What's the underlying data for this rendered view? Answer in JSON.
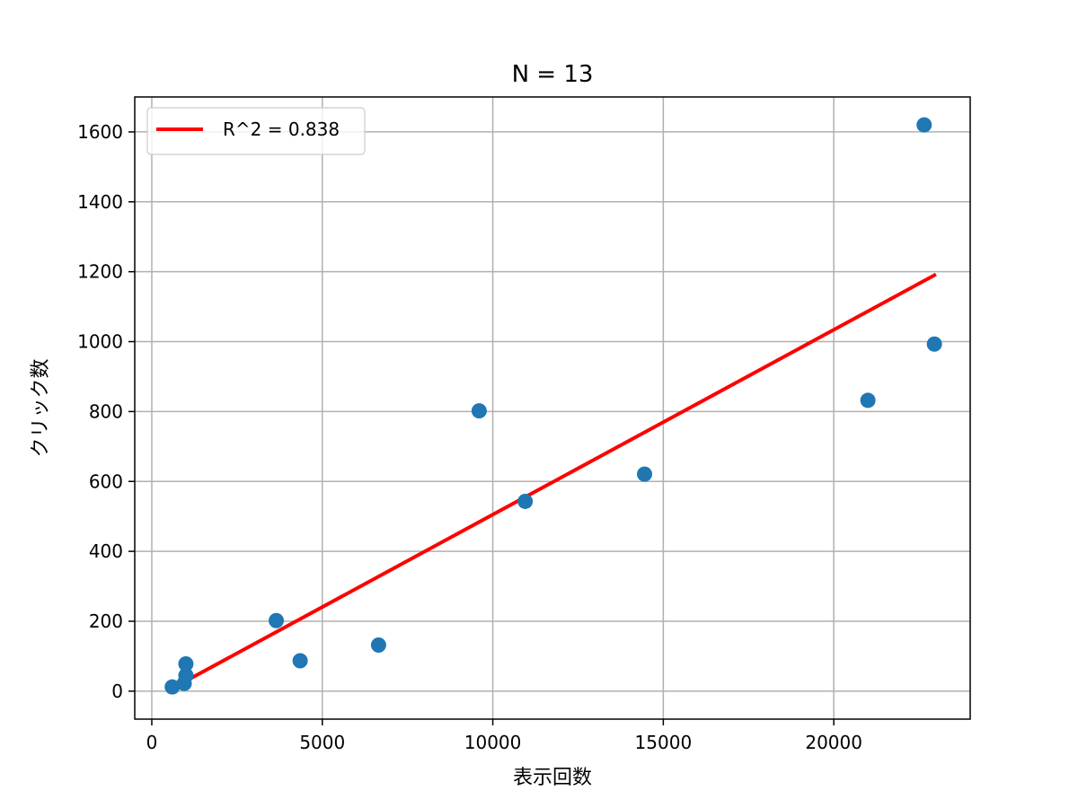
{
  "chart_data": {
    "type": "scatter",
    "title": "N = 13",
    "xlabel": "表示回数",
    "ylabel": "クリック数",
    "xlim": [
      -500,
      24000
    ],
    "ylim": [
      -80,
      1700
    ],
    "xticks": [
      0,
      5000,
      10000,
      15000,
      20000
    ],
    "yticks": [
      0,
      200,
      400,
      600,
      800,
      1000,
      1200,
      1400,
      1600
    ],
    "grid": true,
    "legend_position": "top-left",
    "series": [
      {
        "kind": "scatter",
        "color": "#1f77b4",
        "points": [
          {
            "x": 600,
            "y": 12
          },
          {
            "x": 950,
            "y": 22
          },
          {
            "x": 1000,
            "y": 45
          },
          {
            "x": 1000,
            "y": 78
          },
          {
            "x": 3650,
            "y": 202
          },
          {
            "x": 4350,
            "y": 87
          },
          {
            "x": 6650,
            "y": 132
          },
          {
            "x": 9600,
            "y": 802
          },
          {
            "x": 10950,
            "y": 543
          },
          {
            "x": 14450,
            "y": 621
          },
          {
            "x": 21000,
            "y": 832
          },
          {
            "x": 22650,
            "y": 1620
          },
          {
            "x": 22950,
            "y": 993
          }
        ]
      },
      {
        "kind": "line",
        "name": "R^2 = 0.838",
        "color": "#ff0000",
        "points": [
          {
            "x": 600,
            "y": 8
          },
          {
            "x": 22950,
            "y": 1190
          }
        ]
      }
    ]
  }
}
